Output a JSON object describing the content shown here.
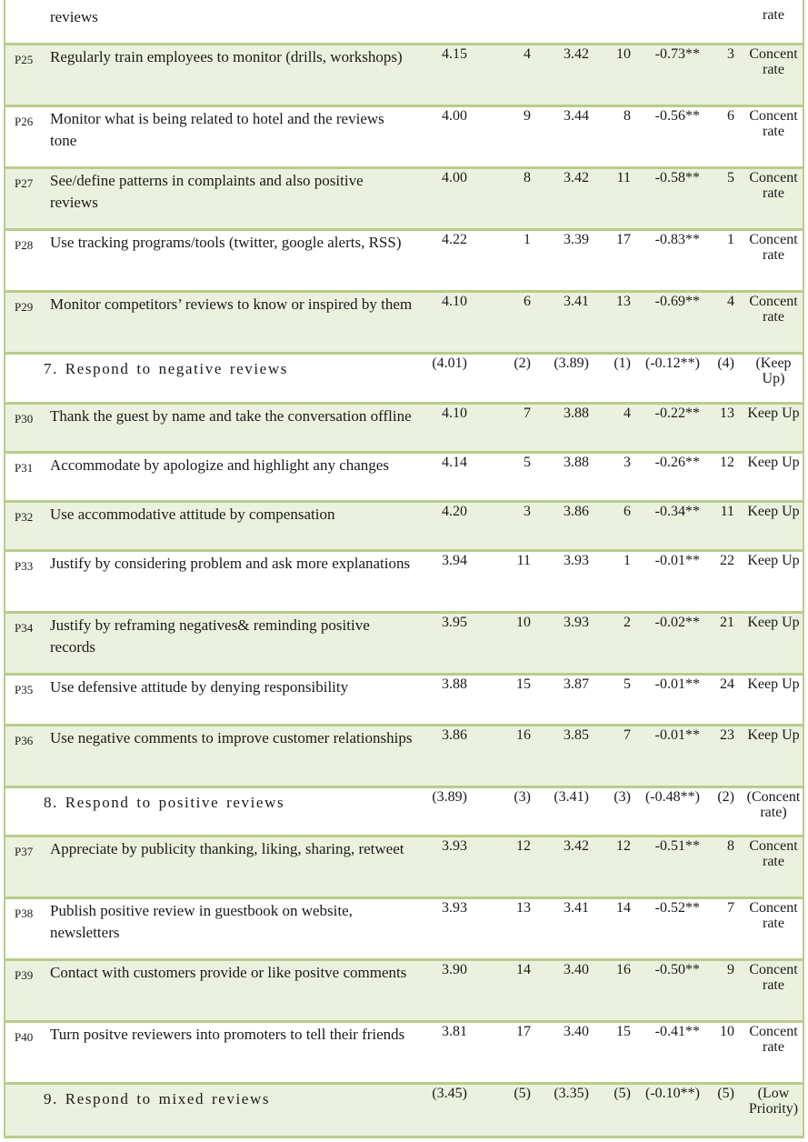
{
  "top_fragment": {
    "desc": "reviews",
    "rating": "rate"
  },
  "rows": [
    {
      "kind": "item",
      "id": "P25",
      "desc": "Regularly train employees to monitor (drills, workshops)",
      "mean1": "4.15",
      "rank1": "4",
      "mean2": "3.42",
      "rank2": "10",
      "diff": "-0.73**",
      "rank3": "3",
      "rating": "Concent rate"
    },
    {
      "kind": "item",
      "id": "P26",
      "desc": "Monitor what is being related to hotel and the reviews tone",
      "mean1": "4.00",
      "rank1": "9",
      "mean2": "3.44",
      "rank2": "8",
      "diff": "-0.56**",
      "rank3": "6",
      "rating": "Concent rate"
    },
    {
      "kind": "item",
      "id": "P27",
      "desc": "See/define patterns in complaints and also positive reviews",
      "mean1": "4.00",
      "rank1": "8",
      "mean2": "3.42",
      "rank2": "11",
      "diff": "-0.58**",
      "rank3": "5",
      "rating": "Concent rate"
    },
    {
      "kind": "item",
      "id": "P28",
      "desc": "Use tracking programs/tools (twitter, google alerts, RSS)",
      "mean1": "4.22",
      "rank1": "1",
      "mean2": "3.39",
      "rank2": "17",
      "diff": "-0.83**",
      "rank3": "1",
      "rating": "Concent rate"
    },
    {
      "kind": "item",
      "id": "P29",
      "desc": "Monitor competitors’ reviews to know or inspired by them",
      "mean1": "4.10",
      "rank1": "6",
      "mean2": "3.41",
      "rank2": "13",
      "diff": "-0.69**",
      "rank3": "4",
      "rating": "Concent rate"
    },
    {
      "kind": "section",
      "id": "",
      "desc": "7.   Respond to negative reviews",
      "mean1": "(4.01)",
      "rank1": "(2)",
      "mean2": "(3.89)",
      "rank2": "(1)",
      "diff": "(-0.12**)",
      "rank3": "(4)",
      "rating": "(Keep Up)"
    },
    {
      "kind": "item",
      "id": "P30",
      "desc": "Thank the guest by name and take the conversation offline",
      "mean1": "4.10",
      "rank1": "7",
      "mean2": "3.88",
      "rank2": "4",
      "diff": "-0.22**",
      "rank3": "13",
      "rating": "Keep Up"
    },
    {
      "kind": "item",
      "id": "P31",
      "desc": "Accommodate by apologize and highlight any changes",
      "mean1": "4.14",
      "rank1": "5",
      "mean2": "3.88",
      "rank2": "3",
      "diff": "-0.26**",
      "rank3": "12",
      "rating": "Keep Up"
    },
    {
      "kind": "item",
      "id": "P32",
      "desc": "Use accommodative attitude by compensation",
      "mean1": "4.20",
      "rank1": "3",
      "mean2": "3.86",
      "rank2": "6",
      "diff": "-0.34**",
      "rank3": "11",
      "rating": "Keep Up"
    },
    {
      "kind": "item",
      "id": "P33",
      "desc": "Justify by considering problem and ask more explanations",
      "mean1": "3.94",
      "rank1": "11",
      "mean2": "3.93",
      "rank2": "1",
      "diff": "-0.01**",
      "rank3": "22",
      "rating": "Keep Up"
    },
    {
      "kind": "item",
      "id": "P34",
      "desc": "Justify by reframing negatives& reminding positive records",
      "mean1": "3.95",
      "rank1": "10",
      "mean2": "3.93",
      "rank2": "2",
      "diff": "-0.02**",
      "rank3": "21",
      "rating": "Keep Up"
    },
    {
      "kind": "item",
      "id": "P35",
      "desc": "Use defensive attitude by denying responsibility",
      "mean1": "3.88",
      "rank1": "15",
      "mean2": "3.87",
      "rank2": "5",
      "diff": "-0.01**",
      "rank3": "24",
      "rating": "Keep Up"
    },
    {
      "kind": "item",
      "id": "P36",
      "desc": "Use negative comments to improve customer relationships",
      "mean1": "3.86",
      "rank1": "16",
      "mean2": "3.85",
      "rank2": "7",
      "diff": "-0.01**",
      "rank3": "23",
      "rating": "Keep Up"
    },
    {
      "kind": "section",
      "id": "",
      "desc": "8.   Respond to positive reviews",
      "mean1": "(3.89)",
      "rank1": "(3)",
      "mean2": "(3.41)",
      "rank2": "(3)",
      "diff": "(-0.48**)",
      "rank3": "(2)",
      "rating": "(Concent rate)"
    },
    {
      "kind": "item",
      "id": "P37",
      "desc": "Appreciate by publicity thanking, liking, sharing, retweet",
      "mean1": "3.93",
      "rank1": "12",
      "mean2": "3.42",
      "rank2": "12",
      "diff": "-0.51**",
      "rank3": "8",
      "rating": "Concent rate"
    },
    {
      "kind": "item",
      "id": "P38",
      "desc": "Publish positive review in guestbook on website, newsletters",
      "mean1": "3.93",
      "rank1": "13",
      "mean2": "3.41",
      "rank2": "14",
      "diff": "-0.52**",
      "rank3": "7",
      "rating": "Concent rate"
    },
    {
      "kind": "item",
      "id": "P39",
      "desc": "Contact with customers provide or like positve comments",
      "mean1": "3.90",
      "rank1": "14",
      "mean2": "3.40",
      "rank2": "16",
      "diff": "-0.50**",
      "rank3": "9",
      "rating": "Concent rate"
    },
    {
      "kind": "item",
      "id": "P40",
      "desc": "Turn positve reviewers into promoters to tell their friends",
      "mean1": "3.81",
      "rank1": "17",
      "mean2": "3.40",
      "rank2": "15",
      "diff": "-0.41**",
      "rank3": "10",
      "rating": "Concent rate"
    },
    {
      "kind": "section",
      "id": "",
      "desc": "9.   Respond to mixed reviews",
      "mean1": "(3.45)",
      "rank1": "(5)",
      "mean2": "(3.35)",
      "rank2": "(5)",
      "diff": "(-0.10**)",
      "rank3": "(5)",
      "rating": "(Low Priority)"
    }
  ]
}
